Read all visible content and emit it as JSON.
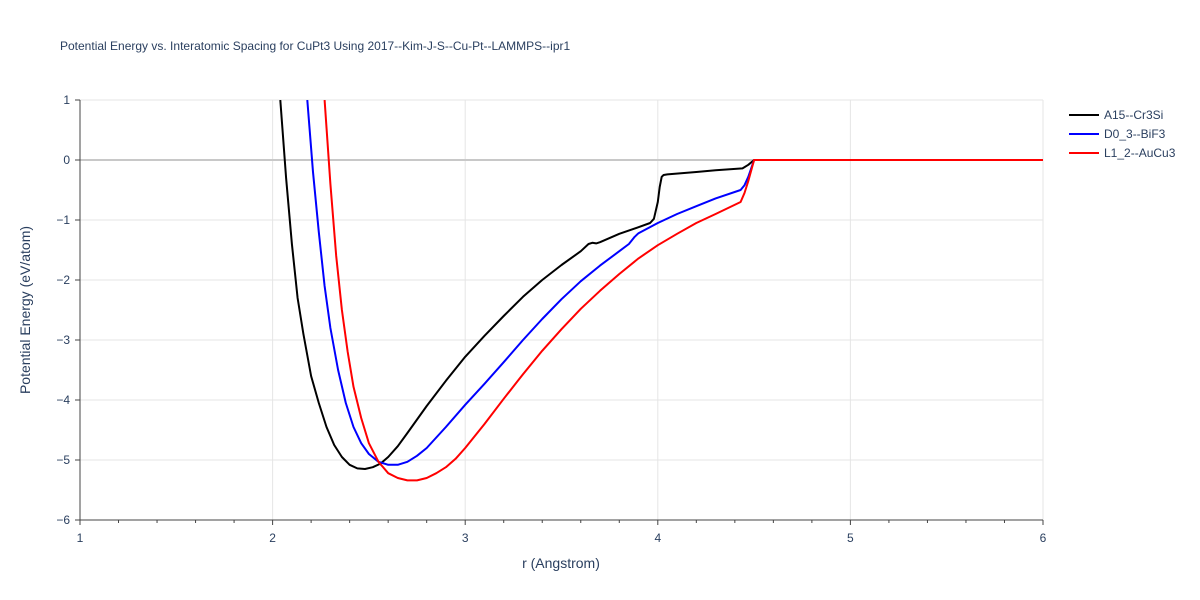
{
  "chart_data": {
    "type": "line",
    "title": "Potential Energy vs. Interatomic Spacing for CuPt3 Using 2017--Kim-J-S--Cu-Pt--LAMMPS--ipr1",
    "xlabel": "r (Angstrom)",
    "ylabel": "Potential Energy (eV/atom)",
    "xlim": [
      1,
      6
    ],
    "ylim": [
      -6,
      1
    ],
    "xticks": [
      1,
      2,
      3,
      4,
      5,
      6
    ],
    "xtick_labels": [
      "1",
      "2",
      "3",
      "4",
      "5",
      "6"
    ],
    "yticks": [
      1,
      0,
      -1,
      -2,
      -3,
      -4,
      -5,
      -6
    ],
    "ytick_labels": [
      "1",
      "0",
      "−1",
      "−2",
      "−3",
      "−4",
      "−5",
      "−6"
    ],
    "grid": true,
    "legend_position": "top-right",
    "series": [
      {
        "name": "A15--Cr3Si",
        "color": "#000000",
        "x": [
          2.04,
          2.07,
          2.1,
          2.13,
          2.16,
          2.2,
          2.24,
          2.28,
          2.32,
          2.36,
          2.4,
          2.44,
          2.48,
          2.52,
          2.56,
          2.6,
          2.65,
          2.7,
          2.8,
          2.9,
          3.0,
          3.1,
          3.2,
          3.3,
          3.4,
          3.5,
          3.6,
          3.64,
          3.66,
          3.68,
          3.7,
          3.8,
          3.9,
          3.96,
          3.98,
          4.0,
          4.01,
          4.02,
          4.03,
          4.05,
          4.2,
          4.3,
          4.44,
          4.47,
          4.5,
          5.0,
          5.5,
          6.0
        ],
        "y": [
          1.0,
          -0.3,
          -1.4,
          -2.3,
          -2.9,
          -3.6,
          -4.05,
          -4.45,
          -4.75,
          -4.95,
          -5.08,
          -5.14,
          -5.15,
          -5.12,
          -5.06,
          -4.95,
          -4.77,
          -4.55,
          -4.1,
          -3.68,
          -3.28,
          -2.93,
          -2.6,
          -2.28,
          -2.0,
          -1.75,
          -1.52,
          -1.4,
          -1.38,
          -1.39,
          -1.37,
          -1.23,
          -1.12,
          -1.05,
          -0.98,
          -0.7,
          -0.45,
          -0.28,
          -0.25,
          -0.24,
          -0.2,
          -0.17,
          -0.14,
          -0.08,
          0.0,
          0.0,
          0.0,
          0.0
        ]
      },
      {
        "name": "D0_3--BiF3",
        "color": "#0000ff",
        "x": [
          2.18,
          2.21,
          2.24,
          2.27,
          2.3,
          2.34,
          2.38,
          2.42,
          2.46,
          2.5,
          2.55,
          2.6,
          2.65,
          2.7,
          2.75,
          2.8,
          2.9,
          3.0,
          3.1,
          3.2,
          3.3,
          3.4,
          3.5,
          3.6,
          3.7,
          3.8,
          3.85,
          3.88,
          3.9,
          4.0,
          4.1,
          4.2,
          4.3,
          4.43,
          4.45,
          4.47,
          4.5,
          5.0,
          5.5,
          6.0
        ],
        "y": [
          1.0,
          -0.2,
          -1.2,
          -2.1,
          -2.8,
          -3.5,
          -4.05,
          -4.45,
          -4.72,
          -4.9,
          -5.03,
          -5.08,
          -5.08,
          -5.03,
          -4.93,
          -4.8,
          -4.45,
          -4.08,
          -3.73,
          -3.37,
          -3.0,
          -2.65,
          -2.32,
          -2.02,
          -1.76,
          -1.52,
          -1.4,
          -1.28,
          -1.22,
          -1.05,
          -0.9,
          -0.77,
          -0.64,
          -0.5,
          -0.42,
          -0.28,
          0.0,
          0.0,
          0.0,
          0.0
        ]
      },
      {
        "name": "L1_2--AuCu3",
        "color": "#ff0000",
        "x": [
          2.27,
          2.3,
          2.33,
          2.36,
          2.39,
          2.42,
          2.46,
          2.5,
          2.55,
          2.6,
          2.65,
          2.7,
          2.75,
          2.8,
          2.85,
          2.9,
          2.95,
          3.0,
          3.1,
          3.2,
          3.3,
          3.4,
          3.5,
          3.6,
          3.7,
          3.8,
          3.9,
          4.0,
          4.1,
          4.2,
          4.3,
          4.43,
          4.45,
          4.47,
          4.5,
          5.0,
          5.5,
          6.0
        ],
        "y": [
          1.0,
          -0.4,
          -1.6,
          -2.5,
          -3.2,
          -3.78,
          -4.3,
          -4.72,
          -5.03,
          -5.22,
          -5.3,
          -5.34,
          -5.34,
          -5.3,
          -5.22,
          -5.12,
          -4.98,
          -4.8,
          -4.4,
          -3.98,
          -3.57,
          -3.18,
          -2.82,
          -2.48,
          -2.18,
          -1.9,
          -1.64,
          -1.42,
          -1.23,
          -1.05,
          -0.9,
          -0.7,
          -0.55,
          -0.35,
          0.0,
          0.0,
          0.0,
          0.0
        ]
      }
    ]
  }
}
